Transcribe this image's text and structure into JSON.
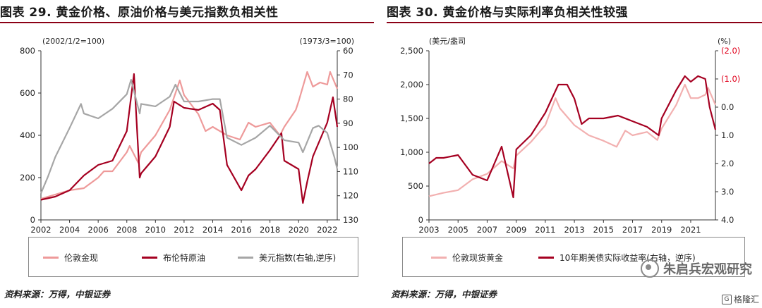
{
  "colors": {
    "gold": "#ee9a9a",
    "oil": "#a50021",
    "usd": "#a6a6a6",
    "rate": "#a50021",
    "gold2": "#f2b0b0"
  },
  "left": {
    "title": "图表 29. 黄金价格、原油价格与美元指数负相关性",
    "left_unit": "(2002/1/2=100)",
    "right_unit": "(1973/3=100)",
    "legend": [
      "伦敦金现",
      "布伦特原油",
      "美元指数(右轴,逆序)"
    ],
    "source": "资料来源：万得，中银证券"
  },
  "right": {
    "title": "图表 30. 黄金价格与实际利率负相关性较强",
    "left_unit": "(美元/盎司",
    "right_unit": "(%)",
    "legend": [
      "伦敦现货黄金",
      "10年期美债实际收益率(右轴，逆序)"
    ],
    "source": "资料来源：万得，中银证券"
  },
  "watermark": "朱启兵宏观研究",
  "badge": "格隆汇",
  "chart_data": [
    {
      "type": "line",
      "title": "图表 29. 黄金价格、原油价格与美元指数负相关性",
      "x_range": [
        2002,
        2022.7
      ],
      "x_ticks": [
        "2002",
        "2004",
        "2006",
        "2008",
        "2010",
        "2012",
        "2014",
        "2016",
        "2018",
        "2020",
        "2022"
      ],
      "y_left": {
        "range": [
          0,
          800
        ],
        "ticks": [
          "0",
          "200",
          "400",
          "600",
          "800"
        ],
        "label": "(2002/1/2=100)"
      },
      "y_right": {
        "range": [
          60,
          130
        ],
        "inverted": true,
        "ticks": [
          "60",
          "70",
          "80",
          "90",
          "100",
          "110",
          "120",
          "130"
        ],
        "label": "(1973/3=100)"
      },
      "series": [
        {
          "name": "伦敦金现",
          "axis": "left",
          "color": "gold",
          "x": [
            2002,
            2003,
            2004,
            2005,
            2006,
            2006.4,
            2007,
            2008,
            2008.2,
            2008.8,
            2009,
            2010,
            2011,
            2011.7,
            2012,
            2013,
            2013.5,
            2014,
            2015,
            2015.9,
            2016.5,
            2017,
            2018,
            2018.7,
            2019,
            2019.8,
            2020,
            2020.6,
            2021,
            2021.5,
            2022,
            2022.2,
            2022.7
          ],
          "y": [
            100,
            120,
            140,
            150,
            200,
            230,
            230,
            320,
            350,
            270,
            320,
            400,
            520,
            660,
            590,
            500,
            420,
            440,
            400,
            380,
            460,
            440,
            460,
            400,
            440,
            520,
            560,
            700,
            630,
            650,
            640,
            700,
            620
          ]
        },
        {
          "name": "布伦特原油",
          "axis": "left",
          "color": "oil",
          "x": [
            2002,
            2003,
            2004,
            2005,
            2006,
            2007,
            2008,
            2008.5,
            2008.9,
            2009,
            2010,
            2011,
            2011.3,
            2012,
            2013,
            2014,
            2014.5,
            2015,
            2016,
            2016.5,
            2017,
            2018,
            2018.8,
            2019,
            2020,
            2020.3,
            2020.6,
            2021,
            2022,
            2022.4,
            2022.7
          ],
          "y": [
            95,
            110,
            140,
            210,
            260,
            280,
            420,
            690,
            200,
            220,
            300,
            440,
            560,
            530,
            520,
            550,
            520,
            260,
            140,
            210,
            240,
            330,
            410,
            280,
            240,
            80,
            180,
            300,
            460,
            580,
            440
          ]
        },
        {
          "name": "美元指数(右轴,逆序)",
          "axis": "right",
          "color": "usd",
          "x": [
            2002,
            2002.5,
            2003,
            2004,
            2004.8,
            2005,
            2006,
            2007,
            2008,
            2008.3,
            2008.9,
            2009,
            2010,
            2011,
            2011.4,
            2012,
            2013,
            2014,
            2014.5,
            2015,
            2016,
            2017,
            2018,
            2019,
            2020,
            2020.3,
            2021,
            2021.4,
            2022,
            2022.5,
            2022.7
          ],
          "y": [
            119,
            112,
            104,
            92,
            82,
            86,
            88,
            84,
            78,
            72,
            86,
            82,
            83,
            79,
            74,
            81,
            81,
            80,
            80,
            96,
            99,
            96,
            91,
            97,
            98,
            102,
            92,
            91,
            94,
            104,
            109
          ]
        }
      ]
    },
    {
      "type": "line",
      "title": "图表 30. 黄金价格与实际利率负相关性较强",
      "x_range": [
        2003,
        2022.7
      ],
      "x_ticks": [
        "2003",
        "2005",
        "2007",
        "2009",
        "2011",
        "2013",
        "2015",
        "2017",
        "2019",
        "2021"
      ],
      "y_left": {
        "range": [
          0,
          2500
        ],
        "ticks": [
          "0",
          "500",
          "1,000",
          "1,500",
          "2,000",
          "2,500"
        ],
        "label": "(美元/盎司"
      },
      "y_right": {
        "range": [
          -2.0,
          4.0
        ],
        "inverted": true,
        "ticks": [
          "(2.0)",
          "(1.0)",
          "0.0",
          "1.0",
          "2.0",
          "3.0",
          "4.0"
        ],
        "label": "(%)"
      },
      "series": [
        {
          "name": "伦敦现货黄金",
          "axis": "left",
          "color": "gold2",
          "x": [
            2003,
            2004,
            2005,
            2006,
            2007,
            2008,
            2008.8,
            2009,
            2010,
            2011,
            2011.7,
            2012,
            2013,
            2014,
            2015,
            2015.9,
            2016.5,
            2017,
            2018,
            2018.7,
            2019,
            2020,
            2020.6,
            2021,
            2021.5,
            2022,
            2022.2,
            2022.7
          ],
          "y": [
            350,
            400,
            440,
            600,
            680,
            870,
            760,
            950,
            1150,
            1400,
            1800,
            1650,
            1400,
            1250,
            1170,
            1080,
            1320,
            1250,
            1300,
            1180,
            1350,
            1700,
            2000,
            1800,
            1800,
            1850,
            1950,
            1700
          ]
        },
        {
          "name": "10年期美债实际收益率(右轴，逆序)",
          "axis": "right",
          "color": "rate",
          "x": [
            2003,
            2003.5,
            2004,
            2005,
            2006,
            2007,
            2008,
            2008.8,
            2009,
            2010,
            2011,
            2011.9,
            2012.5,
            2013,
            2013.5,
            2014,
            2015,
            2016,
            2017,
            2018,
            2018.8,
            2019,
            2020,
            2020.6,
            2021,
            2021.5,
            2022,
            2022.3,
            2022.7
          ],
          "y": [
            2.0,
            1.8,
            1.8,
            1.7,
            2.4,
            2.6,
            1.4,
            3.2,
            1.5,
            1.0,
            0.2,
            -0.8,
            -0.8,
            -0.3,
            0.6,
            0.4,
            0.4,
            0.3,
            0.5,
            0.7,
            1.0,
            0.4,
            -0.6,
            -1.1,
            -0.9,
            -1.1,
            -1.0,
            0.0,
            0.8
          ]
        }
      ]
    }
  ]
}
